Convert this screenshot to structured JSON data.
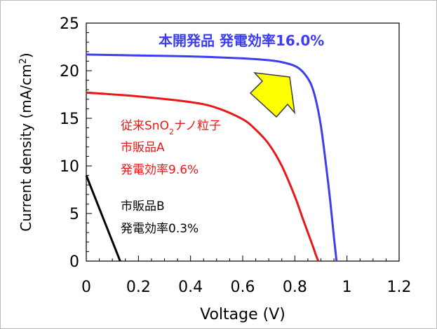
{
  "chart_data": {
    "type": "line",
    "xlabel": "Voltage (V)",
    "ylabel": "Current density (mA/cm²)",
    "ylabel_parts": {
      "main": "Current density (mA/cm",
      "sup": "2",
      "end": ")"
    },
    "xlim": [
      0,
      1.2
    ],
    "ylim": [
      0,
      25
    ],
    "x_ticks": [
      0,
      0.2,
      0.4,
      0.6,
      0.8,
      1,
      1.2
    ],
    "x_tick_labels": [
      "0",
      "0.2",
      "0.4",
      "0.6",
      "0.8",
      "1",
      "1.2"
    ],
    "y_ticks": [
      0,
      5,
      10,
      15,
      20,
      25
    ],
    "y_tick_labels": [
      "0",
      "5",
      "10",
      "15",
      "20",
      "25"
    ],
    "series": [
      {
        "name": "本開発品",
        "color": "#3c3cf0",
        "x": [
          0,
          0.2,
          0.4,
          0.6,
          0.7,
          0.75,
          0.8,
          0.83,
          0.86,
          0.88,
          0.9,
          0.92,
          0.935,
          0.95,
          0.96
        ],
        "y": [
          21.7,
          21.6,
          21.5,
          21.3,
          21.1,
          20.9,
          20.5,
          19.9,
          18.7,
          17.0,
          14.2,
          10.0,
          6.5,
          2.5,
          0
        ]
      },
      {
        "name": "従来SnO2ナノ粒子 市販品A",
        "color": "#e81818",
        "x": [
          0,
          0.2,
          0.4,
          0.5,
          0.6,
          0.65,
          0.7,
          0.75,
          0.8,
          0.83,
          0.85,
          0.87,
          0.88,
          0.89
        ],
        "y": [
          17.7,
          17.3,
          16.7,
          16.1,
          14.9,
          13.8,
          12.3,
          10.0,
          6.8,
          4.5,
          3.0,
          1.5,
          0.7,
          0
        ]
      },
      {
        "name": "市販品B",
        "color": "#000000",
        "x": [
          0,
          0.13
        ],
        "y": [
          9.0,
          0
        ]
      }
    ],
    "annotations": {
      "blue_label": "本開発品 発電効率16.0%",
      "red_line1_a": "従来SnO",
      "red_line1_sub": "2",
      "red_line1_b": "ナノ粒子",
      "red_line2": "市販品A",
      "red_line3": "発電効率9.6%",
      "black_line1": "市販品B",
      "black_line2": "発電効率0.3%"
    },
    "colors": {
      "blue": "#3c3cf0",
      "red": "#e81818",
      "black": "#000000",
      "arrow_fill": "#ffff00",
      "arrow_stroke": "#3a3a3a"
    }
  }
}
